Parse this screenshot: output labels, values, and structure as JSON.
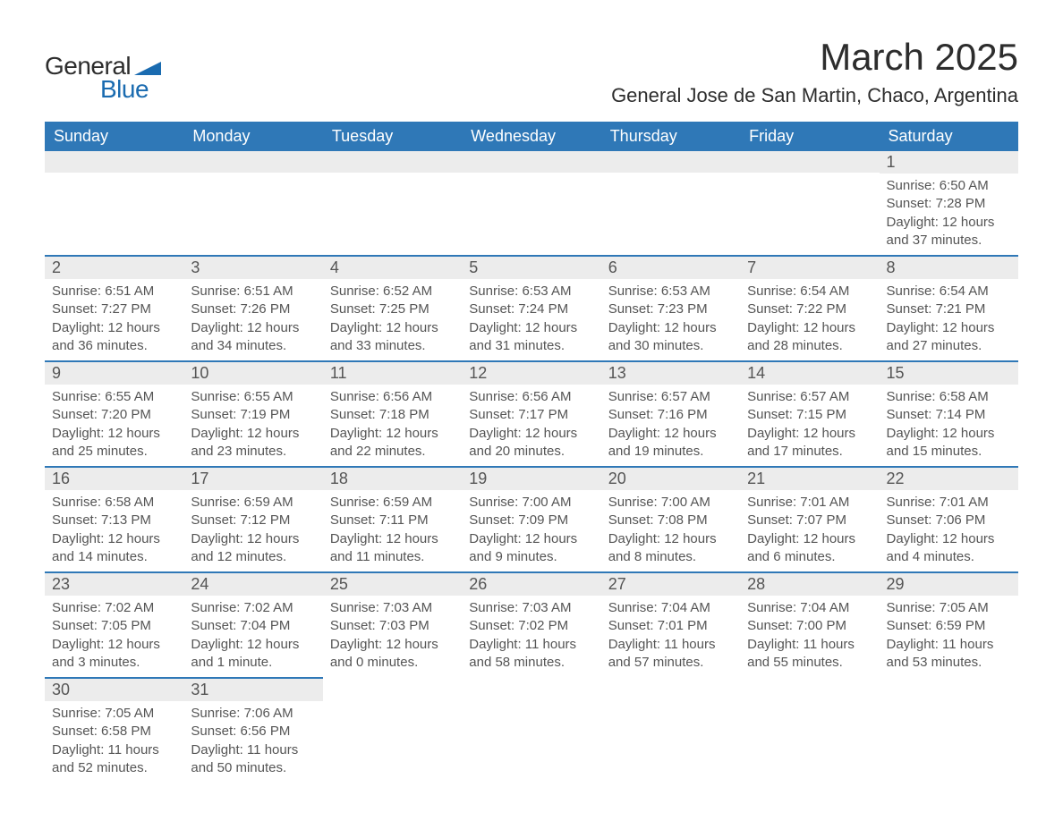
{
  "logo": {
    "text_top": "General",
    "text_bottom": "Blue",
    "shape_color": "#1a6bb0"
  },
  "title": "March 2025",
  "subtitle": "General Jose de San Martin, Chaco, Argentina",
  "colors": {
    "header_bg": "#2f78b7",
    "header_text": "#ffffff",
    "daynum_bg": "#ececec",
    "row_border": "#2f78b7",
    "body_text": "#555555",
    "page_bg": "#ffffff"
  },
  "typography": {
    "title_fontsize": 42,
    "subtitle_fontsize": 22,
    "header_fontsize": 18,
    "daynum_fontsize": 18,
    "body_fontsize": 15
  },
  "day_headers": [
    "Sunday",
    "Monday",
    "Tuesday",
    "Wednesday",
    "Thursday",
    "Friday",
    "Saturday"
  ],
  "weeks": [
    [
      {
        "n": "",
        "lines": [
          "",
          "",
          "",
          ""
        ]
      },
      {
        "n": "",
        "lines": [
          "",
          "",
          "",
          ""
        ]
      },
      {
        "n": "",
        "lines": [
          "",
          "",
          "",
          ""
        ]
      },
      {
        "n": "",
        "lines": [
          "",
          "",
          "",
          ""
        ]
      },
      {
        "n": "",
        "lines": [
          "",
          "",
          "",
          ""
        ]
      },
      {
        "n": "",
        "lines": [
          "",
          "",
          "",
          ""
        ]
      },
      {
        "n": "1",
        "lines": [
          "Sunrise: 6:50 AM",
          "Sunset: 7:28 PM",
          "Daylight: 12 hours",
          "and 37 minutes."
        ]
      }
    ],
    [
      {
        "n": "2",
        "lines": [
          "Sunrise: 6:51 AM",
          "Sunset: 7:27 PM",
          "Daylight: 12 hours",
          "and 36 minutes."
        ]
      },
      {
        "n": "3",
        "lines": [
          "Sunrise: 6:51 AM",
          "Sunset: 7:26 PM",
          "Daylight: 12 hours",
          "and 34 minutes."
        ]
      },
      {
        "n": "4",
        "lines": [
          "Sunrise: 6:52 AM",
          "Sunset: 7:25 PM",
          "Daylight: 12 hours",
          "and 33 minutes."
        ]
      },
      {
        "n": "5",
        "lines": [
          "Sunrise: 6:53 AM",
          "Sunset: 7:24 PM",
          "Daylight: 12 hours",
          "and 31 minutes."
        ]
      },
      {
        "n": "6",
        "lines": [
          "Sunrise: 6:53 AM",
          "Sunset: 7:23 PM",
          "Daylight: 12 hours",
          "and 30 minutes."
        ]
      },
      {
        "n": "7",
        "lines": [
          "Sunrise: 6:54 AM",
          "Sunset: 7:22 PM",
          "Daylight: 12 hours",
          "and 28 minutes."
        ]
      },
      {
        "n": "8",
        "lines": [
          "Sunrise: 6:54 AM",
          "Sunset: 7:21 PM",
          "Daylight: 12 hours",
          "and 27 minutes."
        ]
      }
    ],
    [
      {
        "n": "9",
        "lines": [
          "Sunrise: 6:55 AM",
          "Sunset: 7:20 PM",
          "Daylight: 12 hours",
          "and 25 minutes."
        ]
      },
      {
        "n": "10",
        "lines": [
          "Sunrise: 6:55 AM",
          "Sunset: 7:19 PM",
          "Daylight: 12 hours",
          "and 23 minutes."
        ]
      },
      {
        "n": "11",
        "lines": [
          "Sunrise: 6:56 AM",
          "Sunset: 7:18 PM",
          "Daylight: 12 hours",
          "and 22 minutes."
        ]
      },
      {
        "n": "12",
        "lines": [
          "Sunrise: 6:56 AM",
          "Sunset: 7:17 PM",
          "Daylight: 12 hours",
          "and 20 minutes."
        ]
      },
      {
        "n": "13",
        "lines": [
          "Sunrise: 6:57 AM",
          "Sunset: 7:16 PM",
          "Daylight: 12 hours",
          "and 19 minutes."
        ]
      },
      {
        "n": "14",
        "lines": [
          "Sunrise: 6:57 AM",
          "Sunset: 7:15 PM",
          "Daylight: 12 hours",
          "and 17 minutes."
        ]
      },
      {
        "n": "15",
        "lines": [
          "Sunrise: 6:58 AM",
          "Sunset: 7:14 PM",
          "Daylight: 12 hours",
          "and 15 minutes."
        ]
      }
    ],
    [
      {
        "n": "16",
        "lines": [
          "Sunrise: 6:58 AM",
          "Sunset: 7:13 PM",
          "Daylight: 12 hours",
          "and 14 minutes."
        ]
      },
      {
        "n": "17",
        "lines": [
          "Sunrise: 6:59 AM",
          "Sunset: 7:12 PM",
          "Daylight: 12 hours",
          "and 12 minutes."
        ]
      },
      {
        "n": "18",
        "lines": [
          "Sunrise: 6:59 AM",
          "Sunset: 7:11 PM",
          "Daylight: 12 hours",
          "and 11 minutes."
        ]
      },
      {
        "n": "19",
        "lines": [
          "Sunrise: 7:00 AM",
          "Sunset: 7:09 PM",
          "Daylight: 12 hours",
          "and 9 minutes."
        ]
      },
      {
        "n": "20",
        "lines": [
          "Sunrise: 7:00 AM",
          "Sunset: 7:08 PM",
          "Daylight: 12 hours",
          "and 8 minutes."
        ]
      },
      {
        "n": "21",
        "lines": [
          "Sunrise: 7:01 AM",
          "Sunset: 7:07 PM",
          "Daylight: 12 hours",
          "and 6 minutes."
        ]
      },
      {
        "n": "22",
        "lines": [
          "Sunrise: 7:01 AM",
          "Sunset: 7:06 PM",
          "Daylight: 12 hours",
          "and 4 minutes."
        ]
      }
    ],
    [
      {
        "n": "23",
        "lines": [
          "Sunrise: 7:02 AM",
          "Sunset: 7:05 PM",
          "Daylight: 12 hours",
          "and 3 minutes."
        ]
      },
      {
        "n": "24",
        "lines": [
          "Sunrise: 7:02 AM",
          "Sunset: 7:04 PM",
          "Daylight: 12 hours",
          "and 1 minute."
        ]
      },
      {
        "n": "25",
        "lines": [
          "Sunrise: 7:03 AM",
          "Sunset: 7:03 PM",
          "Daylight: 12 hours",
          "and 0 minutes."
        ]
      },
      {
        "n": "26",
        "lines": [
          "Sunrise: 7:03 AM",
          "Sunset: 7:02 PM",
          "Daylight: 11 hours",
          "and 58 minutes."
        ]
      },
      {
        "n": "27",
        "lines": [
          "Sunrise: 7:04 AM",
          "Sunset: 7:01 PM",
          "Daylight: 11 hours",
          "and 57 minutes."
        ]
      },
      {
        "n": "28",
        "lines": [
          "Sunrise: 7:04 AM",
          "Sunset: 7:00 PM",
          "Daylight: 11 hours",
          "and 55 minutes."
        ]
      },
      {
        "n": "29",
        "lines": [
          "Sunrise: 7:05 AM",
          "Sunset: 6:59 PM",
          "Daylight: 11 hours",
          "and 53 minutes."
        ]
      }
    ],
    [
      {
        "n": "30",
        "lines": [
          "Sunrise: 7:05 AM",
          "Sunset: 6:58 PM",
          "Daylight: 11 hours",
          "and 52 minutes."
        ]
      },
      {
        "n": "31",
        "lines": [
          "Sunrise: 7:06 AM",
          "Sunset: 6:56 PM",
          "Daylight: 11 hours",
          "and 50 minutes."
        ]
      },
      {
        "n": "",
        "lines": [
          "",
          "",
          "",
          ""
        ]
      },
      {
        "n": "",
        "lines": [
          "",
          "",
          "",
          ""
        ]
      },
      {
        "n": "",
        "lines": [
          "",
          "",
          "",
          ""
        ]
      },
      {
        "n": "",
        "lines": [
          "",
          "",
          "",
          ""
        ]
      },
      {
        "n": "",
        "lines": [
          "",
          "",
          "",
          ""
        ]
      }
    ]
  ]
}
